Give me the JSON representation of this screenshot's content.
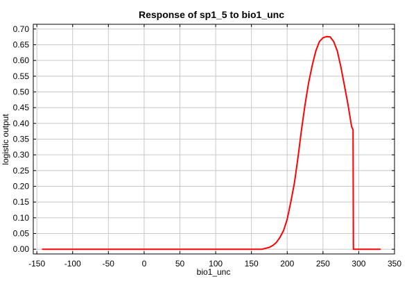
{
  "chart_data": {
    "type": "line",
    "title": "Response of sp1_5 to bio1_unc",
    "xlabel": "bio1_unc",
    "ylabel": "logistic output",
    "xlim": [
      -155,
      350
    ],
    "ylim": [
      -0.015,
      0.715
    ],
    "xticks": [
      "-150",
      "-100",
      "-50",
      "0",
      "50",
      "100",
      "150",
      "200",
      "250",
      "300",
      "350"
    ],
    "xtick_values": [
      -150,
      -100,
      -50,
      0,
      50,
      100,
      150,
      200,
      250,
      300,
      350
    ],
    "yticks": [
      "0.00",
      "0.05",
      "0.10",
      "0.15",
      "0.20",
      "0.25",
      "0.30",
      "0.35",
      "0.40",
      "0.45",
      "0.50",
      "0.55",
      "0.60",
      "0.65",
      "0.70"
    ],
    "ytick_values": [
      0,
      0.05,
      0.1,
      0.15,
      0.2,
      0.25,
      0.3,
      0.35,
      0.4,
      0.45,
      0.5,
      0.55,
      0.6,
      0.65,
      0.7
    ],
    "grid": true,
    "series": [
      {
        "color": "#ff0000",
        "x": [
          -142,
          160,
          165,
          170,
          175,
          180,
          185,
          190,
          195,
          200,
          205,
          210,
          215,
          220,
          225,
          230,
          235,
          240,
          245,
          250,
          255,
          260,
          265,
          270,
          275,
          280,
          285,
          290,
          292,
          292.5,
          295,
          300,
          330
        ],
        "y": [
          0.0,
          0.0,
          0.0,
          0.003,
          0.006,
          0.012,
          0.022,
          0.038,
          0.06,
          0.095,
          0.15,
          0.21,
          0.29,
          0.38,
          0.46,
          0.53,
          0.585,
          0.63,
          0.66,
          0.672,
          0.676,
          0.675,
          0.66,
          0.63,
          0.58,
          0.52,
          0.46,
          0.39,
          0.38,
          0.0,
          0.0,
          0.0,
          0.0
        ]
      }
    ]
  }
}
